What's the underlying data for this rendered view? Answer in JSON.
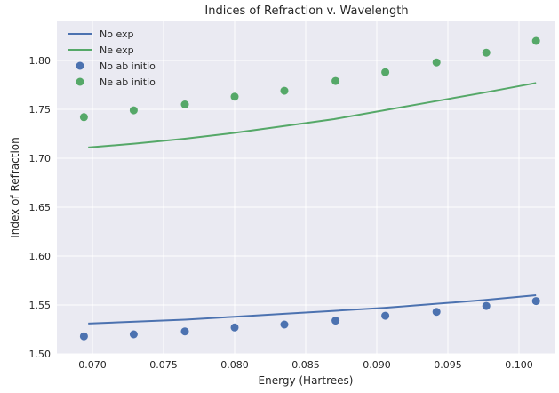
{
  "chart_data": {
    "type": "line",
    "title": "Indices of Refraction v. Wavelength",
    "xlabel": "Energy (Hartrees)",
    "ylabel": "Index of Refraction",
    "xlim": [
      0.0675,
      0.1025
    ],
    "ylim": [
      1.5,
      1.84
    ],
    "xticks": [
      0.07,
      0.075,
      0.08,
      0.085,
      0.09,
      0.095,
      0.1
    ],
    "xtick_labels": [
      "0.070",
      "0.075",
      "0.080",
      "0.085",
      "0.090",
      "0.095",
      "0.100"
    ],
    "yticks": [
      1.5,
      1.55,
      1.6,
      1.65,
      1.7,
      1.75,
      1.8
    ],
    "ytick_labels": [
      "1.50",
      "1.55",
      "1.60",
      "1.65",
      "1.70",
      "1.75",
      "1.80"
    ],
    "grid": true,
    "legend_position": "top-left",
    "background": "#eaeaf2",
    "series": [
      {
        "name": "No exp",
        "kind": "line",
        "color": "#4c72b0",
        "x": [
          0.0697,
          0.073,
          0.0765,
          0.08,
          0.0835,
          0.087,
          0.0905,
          0.094,
          0.0975,
          0.1012
        ],
        "y": [
          1.531,
          1.533,
          1.535,
          1.538,
          1.541,
          1.544,
          1.547,
          1.551,
          1.555,
          1.56
        ]
      },
      {
        "name": "Ne exp",
        "kind": "line",
        "color": "#55a868",
        "x": [
          0.0697,
          0.073,
          0.0765,
          0.08,
          0.0835,
          0.087,
          0.0905,
          0.094,
          0.0975,
          0.1012
        ],
        "y": [
          1.711,
          1.715,
          1.72,
          1.726,
          1.733,
          1.74,
          1.749,
          1.758,
          1.767,
          1.777
        ]
      },
      {
        "name": "No ab initio",
        "kind": "scatter",
        "color": "#4c72b0",
        "x": [
          0.0694,
          0.0729,
          0.0765,
          0.08,
          0.0835,
          0.0871,
          0.0906,
          0.0942,
          0.0977,
          0.1012
        ],
        "y": [
          1.518,
          1.52,
          1.523,
          1.527,
          1.53,
          1.534,
          1.539,
          1.543,
          1.549,
          1.554
        ]
      },
      {
        "name": "Ne ab initio",
        "kind": "scatter",
        "color": "#55a868",
        "x": [
          0.0694,
          0.0729,
          0.0765,
          0.08,
          0.0835,
          0.0871,
          0.0906,
          0.0942,
          0.0977,
          0.1012
        ],
        "y": [
          1.742,
          1.749,
          1.755,
          1.763,
          1.769,
          1.779,
          1.788,
          1.798,
          1.808,
          1.82
        ]
      }
    ]
  }
}
